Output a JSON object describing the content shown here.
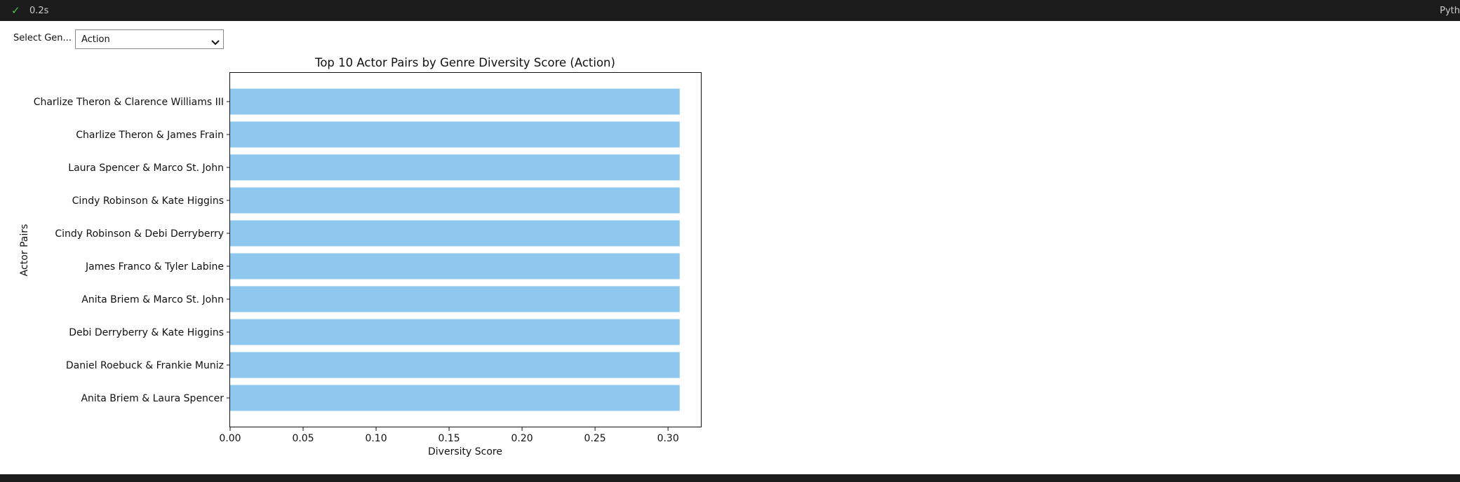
{
  "status_bar": {
    "time": "0.2s",
    "kernel": "Pyth"
  },
  "widget": {
    "label": "Select Gen...",
    "selected": "Action"
  },
  "chart_data": {
    "type": "bar",
    "orientation": "horizontal",
    "title": "Top 10 Actor Pairs by Genre Diversity Score (Action)",
    "xlabel": "Diversity Score",
    "ylabel": "Actor Pairs",
    "xlim": [
      0,
      0.323
    ],
    "xticks": [
      "0.00",
      "0.05",
      "0.10",
      "0.15",
      "0.20",
      "0.25",
      "0.30"
    ],
    "categories": [
      "Charlize Theron & Clarence Williams III",
      "Charlize Theron & James Frain",
      "Laura Spencer & Marco St. John",
      "Cindy Robinson & Kate Higgins",
      "Cindy Robinson & Debi Derryberry",
      "James Franco & Tyler Labine",
      "Anita Briem & Marco St. John",
      "Debi Derryberry & Kate Higgins",
      "Daniel Roebuck & Frankie Muniz",
      "Anita Briem & Laura Spencer"
    ],
    "values": [
      0.308,
      0.308,
      0.308,
      0.308,
      0.308,
      0.308,
      0.308,
      0.308,
      0.308,
      0.308
    ],
    "bar_color": "#8fc8ee",
    "grid": false,
    "legend": "none"
  }
}
